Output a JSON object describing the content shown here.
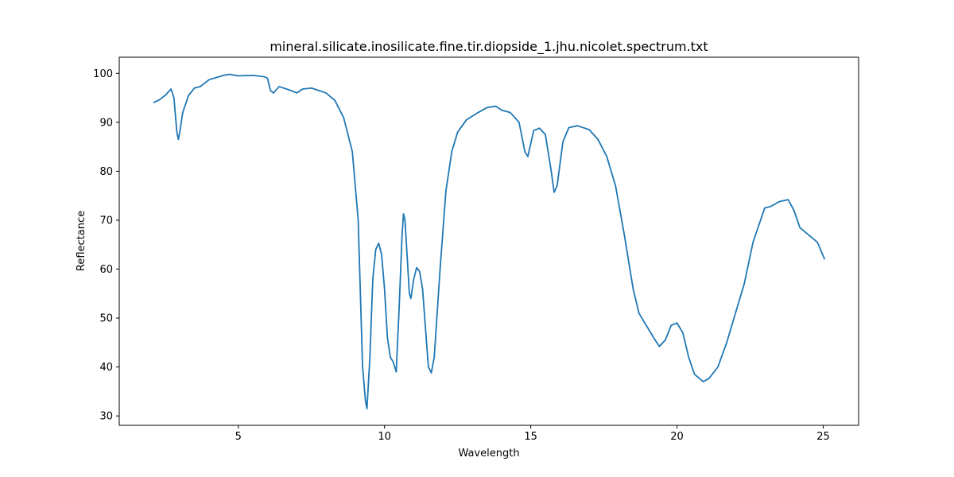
{
  "chart_data": {
    "type": "line",
    "title": "mineral.silicate.inosilicate.fine.tir.diopside_1.jhu.nicolet.spectrum.txt",
    "x_label": "Wavelength",
    "y_label": "Reflectance",
    "x": [
      2.1,
      2.3,
      2.5,
      2.7,
      2.8,
      2.9,
      2.95,
      3.0,
      3.1,
      3.3,
      3.5,
      3.7,
      4.0,
      4.5,
      4.7,
      5.0,
      5.5,
      5.9,
      6.0,
      6.1,
      6.2,
      6.4,
      6.8,
      7.0,
      7.2,
      7.5,
      8.0,
      8.3,
      8.6,
      8.9,
      9.1,
      9.2,
      9.25,
      9.35,
      9.4,
      9.5,
      9.6,
      9.7,
      9.8,
      9.9,
      10.0,
      10.1,
      10.2,
      10.3,
      10.4,
      10.5,
      10.6,
      10.65,
      10.7,
      10.8,
      10.85,
      10.9,
      11.0,
      11.1,
      11.2,
      11.3,
      11.4,
      11.5,
      11.6,
      11.7,
      11.9,
      12.1,
      12.3,
      12.5,
      12.8,
      13.2,
      13.5,
      13.8,
      14.0,
      14.3,
      14.6,
      14.8,
      14.9,
      15.1,
      15.3,
      15.5,
      15.7,
      15.8,
      15.9,
      16.1,
      16.3,
      16.6,
      17.0,
      17.3,
      17.6,
      17.9,
      18.2,
      18.5,
      18.7,
      19.0,
      19.2,
      19.4,
      19.6,
      19.8,
      20.0,
      20.2,
      20.4,
      20.6,
      20.9,
      21.1,
      21.4,
      21.7,
      22.0,
      22.3,
      22.6,
      22.8,
      23.0,
      23.2,
      23.5,
      23.8,
      24.0,
      24.2,
      24.5,
      24.8,
      25.05
    ],
    "series": [
      {
        "name": "Reflectance",
        "color": "#1f77b4",
        "values": [
          94,
          94.6,
          95.5,
          96.8,
          95,
          88,
          86.5,
          88,
          92,
          95.5,
          97,
          97.3,
          98.7,
          99.6,
          99.8,
          99.5,
          99.6,
          99.3,
          99,
          96.5,
          96,
          97.3,
          96.5,
          96,
          96.8,
          97,
          96,
          94.5,
          91,
          84,
          70,
          50,
          40,
          33,
          31.5,
          42,
          58,
          64,
          65.3,
          63,
          56,
          46,
          42,
          41,
          39,
          52,
          67,
          71.3,
          70,
          60,
          55,
          54,
          58,
          60.3,
          59.5,
          56,
          48,
          40,
          38.8,
          42,
          60,
          76,
          84,
          88,
          90.5,
          92,
          93,
          93.3,
          92.5,
          92,
          90,
          84,
          83,
          88.3,
          88.8,
          87.5,
          80,
          75.7,
          77,
          86,
          88.9,
          89.3,
          88.5,
          86.5,
          83,
          77,
          67,
          56,
          51,
          48,
          46,
          44.2,
          45.5,
          48.5,
          49,
          47,
          42,
          38.5,
          37,
          37.7,
          40,
          45,
          51,
          57,
          65.5,
          69,
          72.5,
          72.8,
          73.8,
          74.2,
          72,
          68.5,
          67,
          65.5,
          62
        ]
      }
    ],
    "xlim": [
      0.93,
      26.21
    ],
    "ylim": [
      28.08,
      103.3
    ],
    "xticks": [
      5,
      10,
      15,
      20,
      25
    ],
    "yticks": [
      30,
      40,
      50,
      60,
      70,
      80,
      90,
      100
    ]
  }
}
